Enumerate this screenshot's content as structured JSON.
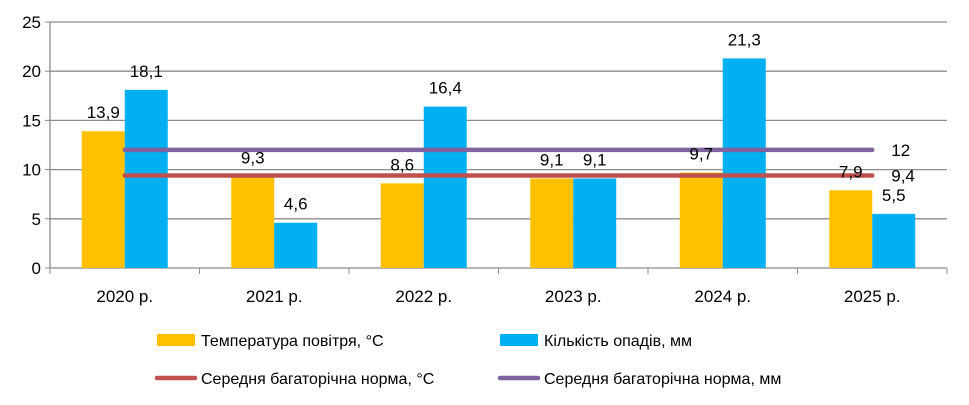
{
  "chart_data": {
    "type": "bar",
    "categories": [
      "2020 р.",
      "2021 р.",
      "2022 р.",
      "2023 р.",
      "2024 р.",
      "2025 р."
    ],
    "series": [
      {
        "name": "Температура повітря, °С",
        "type": "bar",
        "color": "#FFC000",
        "values": [
          13.9,
          9.3,
          8.6,
          9.1,
          9.7,
          7.9
        ],
        "labels": [
          "13,9",
          "9,3",
          "8,6",
          "9,1",
          "9,7",
          "7,9"
        ]
      },
      {
        "name": "Кількість опадів, мм",
        "type": "bar",
        "color": "#00B0F0",
        "values": [
          18.1,
          4.6,
          16.4,
          9.1,
          21.3,
          5.5
        ],
        "labels": [
          "18,1",
          "4,6",
          "16,4",
          "9,1",
          "21,3",
          "5,5"
        ]
      },
      {
        "name": "Середня багаторічна норма, °С",
        "type": "line",
        "color": "#C0504D",
        "value": 9.4,
        "label": "9,4"
      },
      {
        "name": "Середня багаторічна норма, мм",
        "type": "line",
        "color": "#8064A2",
        "value": 12,
        "label": "12"
      }
    ],
    "ylim": [
      0,
      25
    ],
    "yticks": [
      0,
      5,
      10,
      15,
      20,
      25
    ],
    "grid": true,
    "legend": "bottom",
    "title": "",
    "xlabel": "",
    "ylabel": ""
  }
}
